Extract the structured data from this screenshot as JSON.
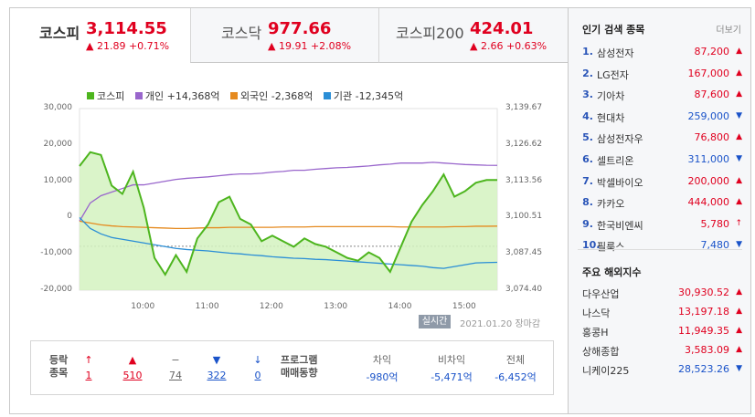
{
  "tabs": [
    {
      "name": "코스피",
      "value": "3,114.55",
      "change": "▲ 21.89 +0.71%"
    },
    {
      "name": "코스닥",
      "value": "977.66",
      "change": "▲ 19.91 +2.08%"
    },
    {
      "name": "코스피200",
      "value": "424.01",
      "change": "▲ 2.66 +0.63%"
    }
  ],
  "legend": {
    "kospi": "코스피",
    "individual": "개인 +14,368억",
    "foreign": "외국인 -2,368억",
    "institution": "기관 -12,345억"
  },
  "colors": {
    "up": "#e0001f",
    "down": "#1a53c9",
    "kospi": "#4db51e",
    "individual": "#9966cc",
    "foreign": "#e58a1f",
    "institution": "#2a8ed6"
  },
  "chart_data": {
    "type": "line",
    "x": [
      "9:00",
      "9:10",
      "9:20",
      "9:30",
      "9:40",
      "9:50",
      "10:00",
      "10:10",
      "10:20",
      "10:30",
      "10:40",
      "10:50",
      "11:00",
      "11:10",
      "11:20",
      "11:30",
      "11:40",
      "11:50",
      "12:00",
      "12:10",
      "12:20",
      "12:30",
      "12:40",
      "12:50",
      "13:00",
      "13:10",
      "13:20",
      "13:30",
      "13:40",
      "13:50",
      "14:00",
      "14:10",
      "14:20",
      "14:30",
      "14:40",
      "14:50",
      "15:00",
      "15:10",
      "15:20",
      "15:30"
    ],
    "left_axis": {
      "ticks": [
        "30,000",
        "20,000",
        "10,000",
        "0",
        "-10,000",
        "-20,000"
      ],
      "ylim": [
        -20000,
        30000
      ]
    },
    "right_axis": {
      "ticks": [
        "3,139.67",
        "3,126.62",
        "3,113.56",
        "3,100.51",
        "3,087.45",
        "3,074.40"
      ],
      "ylim": [
        3074.4,
        3139.67
      ]
    },
    "x_ticks": [
      "10:00",
      "11:00",
      "12:00",
      "13:00",
      "14:00",
      "15:00"
    ],
    "series": [
      {
        "name": "코스피",
        "axis": "right",
        "values": [
          3119,
          3124,
          3123,
          3112,
          3109,
          3117,
          3104,
          3086,
          3080,
          3087,
          3081,
          3093,
          3098,
          3106,
          3108,
          3100,
          3098,
          3092,
          3094,
          3092,
          3090,
          3093,
          3091,
          3090,
          3088,
          3086,
          3085,
          3088,
          3086,
          3081,
          3090,
          3099,
          3105,
          3110,
          3116,
          3108,
          3110,
          3113,
          3114,
          3114
        ]
      },
      {
        "name": "개인 +14,368억",
        "axis": "left",
        "values": [
          -1000,
          4000,
          6000,
          7000,
          8000,
          9000,
          9000,
          9500,
          10000,
          10500,
          10800,
          11000,
          11200,
          11500,
          11800,
          12000,
          12000,
          12200,
          12500,
          12700,
          13000,
          13000,
          13300,
          13500,
          13700,
          13800,
          14000,
          14200,
          14500,
          14700,
          15000,
          15000,
          15000,
          15200,
          15000,
          14800,
          14600,
          14500,
          14400,
          14368
        ]
      },
      {
        "name": "외국인 -2,368억",
        "axis": "left",
        "values": [
          -1000,
          -1500,
          -2000,
          -2300,
          -2500,
          -2600,
          -2700,
          -2800,
          -2900,
          -3000,
          -3000,
          -2900,
          -2800,
          -2800,
          -2700,
          -2700,
          -2700,
          -2700,
          -2700,
          -2600,
          -2600,
          -2600,
          -2500,
          -2500,
          -2500,
          -2500,
          -2500,
          -2500,
          -2500,
          -2500,
          -2600,
          -2600,
          -2600,
          -2600,
          -2600,
          -2500,
          -2500,
          -2400,
          -2400,
          -2368
        ]
      },
      {
        "name": "기관 -12,345억",
        "axis": "left",
        "values": [
          0,
          -3000,
          -4500,
          -5500,
          -6000,
          -6500,
          -7000,
          -7500,
          -8000,
          -8500,
          -8800,
          -9000,
          -9200,
          -9500,
          -9800,
          -10000,
          -10300,
          -10500,
          -10800,
          -11000,
          -11200,
          -11300,
          -11500,
          -11600,
          -11800,
          -12000,
          -12200,
          -12400,
          -12600,
          -12800,
          -13000,
          -13200,
          -13400,
          -13800,
          -14000,
          -13500,
          -13000,
          -12500,
          -12400,
          -12345
        ]
      }
    ]
  },
  "status": {
    "realtime": "실시간",
    "timestamp": "2021.01.20 장마감"
  },
  "breadth": {
    "label": "등락\n종목",
    "items": [
      {
        "symbol": "↑",
        "count": "1",
        "dir": "up"
      },
      {
        "symbol": "▲",
        "count": "510",
        "dir": "up"
      },
      {
        "symbol": "−",
        "count": "74",
        "dir": "flat"
      },
      {
        "symbol": "▼",
        "count": "322",
        "dir": "down"
      },
      {
        "symbol": "↓",
        "count": "0",
        "dir": "down"
      }
    ]
  },
  "program": {
    "label": "프로그램\n매매동향",
    "cols": [
      {
        "title": "차익",
        "value": "-980억"
      },
      {
        "title": "비차익",
        "value": "-5,471억"
      },
      {
        "title": "전체",
        "value": "-6,452억"
      }
    ]
  },
  "popular": {
    "title": "인기 검색 종목",
    "more": "더보기",
    "items": [
      {
        "rank": "1.",
        "name": "삼성전자",
        "price": "87,200",
        "dir": "up",
        "arrow": "▲"
      },
      {
        "rank": "2.",
        "name": "LG전자",
        "price": "167,000",
        "dir": "up",
        "arrow": "▲"
      },
      {
        "rank": "3.",
        "name": "기아차",
        "price": "87,600",
        "dir": "up",
        "arrow": "▲"
      },
      {
        "rank": "4.",
        "name": "현대차",
        "price": "259,000",
        "dir": "down",
        "arrow": "▼"
      },
      {
        "rank": "5.",
        "name": "삼성전자우",
        "price": "76,800",
        "dir": "up",
        "arrow": "▲"
      },
      {
        "rank": "6.",
        "name": "셀트리온",
        "price": "311,000",
        "dir": "down",
        "arrow": "▼"
      },
      {
        "rank": "7.",
        "name": "박셀바이오",
        "price": "200,000",
        "dir": "up",
        "arrow": "▲"
      },
      {
        "rank": "8.",
        "name": "카카오",
        "price": "444,000",
        "dir": "up",
        "arrow": "▲"
      },
      {
        "rank": "9.",
        "name": "한국비엔씨",
        "price": "5,780",
        "dir": "up",
        "arrow": "↑"
      },
      {
        "rank": "10.",
        "name": "필룩스",
        "price": "7,480",
        "dir": "down",
        "arrow": "▼"
      }
    ]
  },
  "overseas": {
    "title": "주요 해외지수",
    "items": [
      {
        "name": "다우산업",
        "value": "30,930.52",
        "dir": "up",
        "arrow": "▲"
      },
      {
        "name": "나스닥",
        "value": "13,197.18",
        "dir": "up",
        "arrow": "▲"
      },
      {
        "name": "홍콩H",
        "value": "11,949.35",
        "dir": "up",
        "arrow": "▲"
      },
      {
        "name": "상해종합",
        "value": "3,583.09",
        "dir": "up",
        "arrow": "▲"
      },
      {
        "name": "니케이225",
        "value": "28,523.26",
        "dir": "down",
        "arrow": "▼"
      }
    ]
  }
}
